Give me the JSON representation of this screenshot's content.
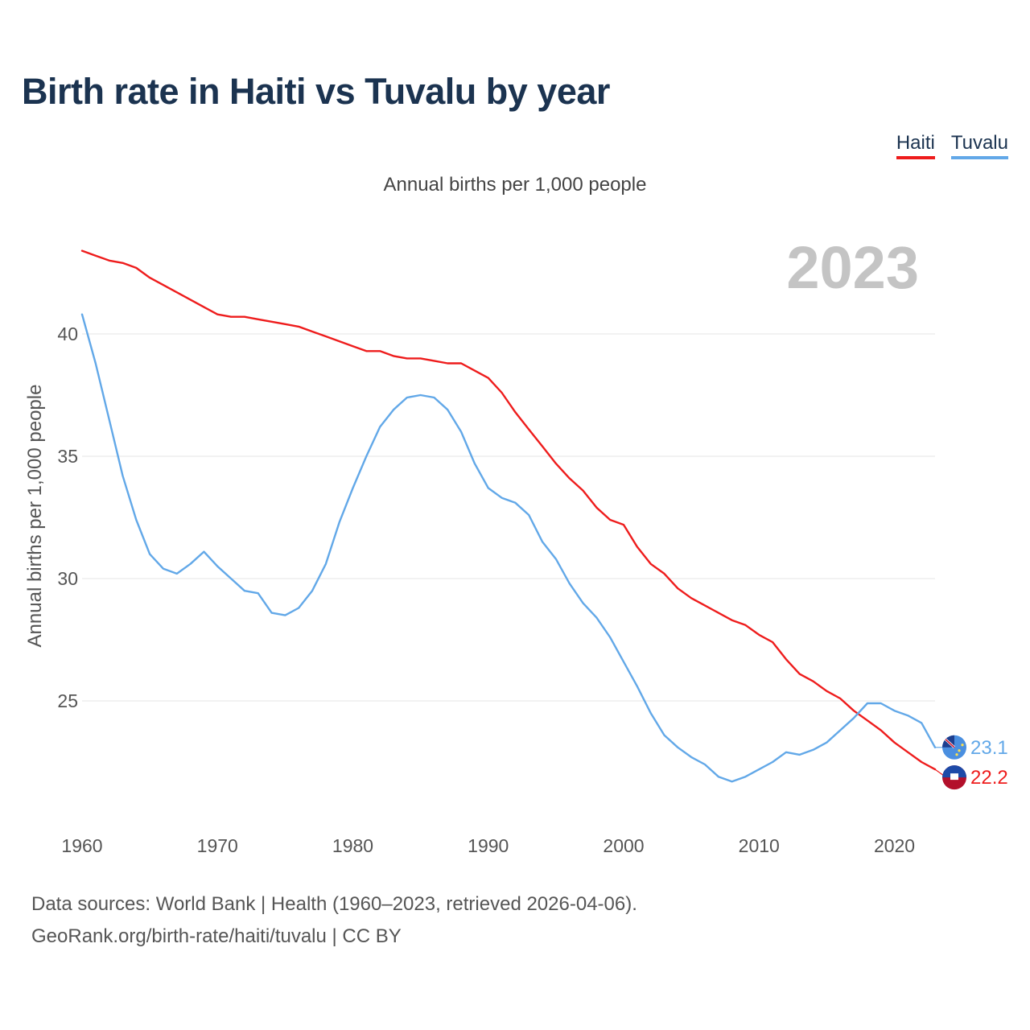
{
  "title": "Birth rate in Haiti vs Tuvalu by year",
  "subtitle": "Annual births per 1,000 people",
  "year_badge": "2023",
  "legend": [
    {
      "name": "Haiti",
      "color": "#ee1c1c"
    },
    {
      "name": "Tuvalu",
      "color": "#62a8e8"
    }
  ],
  "source": {
    "line1": "Data sources: World Bank | Health (1960–2023, retrieved 2026-04-06).",
    "line2": "GeoRank.org/birth-rate/haiti/tuvalu | CC BY"
  },
  "chart_data": {
    "type": "line",
    "title": "Birth rate in Haiti vs Tuvalu by year",
    "ylabel": "Annual births per 1,000 people",
    "xlabel": "",
    "xlim": [
      1960,
      2023
    ],
    "ylim": [
      20,
      43.5
    ],
    "xticks": [
      1960,
      1970,
      1980,
      1990,
      2000,
      2010,
      2020
    ],
    "yticks": [
      25,
      30,
      35,
      40
    ],
    "grid": true,
    "x": [
      1960,
      1961,
      1962,
      1963,
      1964,
      1965,
      1966,
      1967,
      1968,
      1969,
      1970,
      1971,
      1972,
      1973,
      1974,
      1975,
      1976,
      1977,
      1978,
      1979,
      1980,
      1981,
      1982,
      1983,
      1984,
      1985,
      1986,
      1987,
      1988,
      1989,
      1990,
      1991,
      1992,
      1993,
      1994,
      1995,
      1996,
      1997,
      1998,
      1999,
      2000,
      2001,
      2002,
      2003,
      2004,
      2005,
      2006,
      2007,
      2008,
      2009,
      2010,
      2011,
      2012,
      2013,
      2014,
      2015,
      2016,
      2017,
      2018,
      2019,
      2020,
      2021,
      2022,
      2023
    ],
    "series": [
      {
        "name": "Haiti",
        "color": "#ee1c1c",
        "end_label": "22.2",
        "values": [
          43.4,
          43.2,
          43.0,
          42.9,
          42.7,
          42.3,
          42.0,
          41.7,
          41.4,
          41.1,
          40.8,
          40.7,
          40.7,
          40.6,
          40.5,
          40.4,
          40.3,
          40.1,
          39.9,
          39.7,
          39.5,
          39.3,
          39.3,
          39.1,
          39.0,
          39.0,
          38.9,
          38.8,
          38.8,
          38.5,
          38.2,
          37.6,
          36.8,
          36.1,
          35.4,
          34.7,
          34.1,
          33.6,
          32.9,
          32.4,
          32.2,
          31.3,
          30.6,
          30.2,
          29.6,
          29.2,
          28.9,
          28.6,
          28.3,
          28.1,
          27.7,
          27.4,
          26.7,
          26.1,
          25.8,
          25.4,
          25.1,
          24.6,
          24.2,
          23.8,
          23.3,
          22.9,
          22.5,
          22.2
        ]
      },
      {
        "name": "Tuvalu",
        "color": "#62a8e8",
        "end_label": "23.1",
        "values": [
          40.8,
          38.8,
          36.5,
          34.2,
          32.4,
          31.0,
          30.4,
          30.2,
          30.6,
          31.1,
          30.5,
          30.0,
          29.5,
          29.4,
          28.6,
          28.5,
          28.8,
          29.5,
          30.6,
          32.3,
          33.7,
          35.0,
          36.2,
          36.9,
          37.4,
          37.5,
          37.4,
          36.9,
          36.0,
          34.7,
          33.7,
          33.3,
          33.1,
          32.6,
          31.5,
          30.8,
          29.8,
          29.0,
          28.4,
          27.6,
          26.6,
          25.6,
          24.5,
          23.6,
          23.1,
          22.7,
          22.4,
          21.9,
          21.7,
          21.9,
          22.2,
          22.5,
          22.9,
          22.8,
          23.0,
          23.3,
          23.8,
          24.3,
          24.9,
          24.9,
          24.6,
          24.4,
          24.1,
          23.1
        ]
      }
    ]
  }
}
